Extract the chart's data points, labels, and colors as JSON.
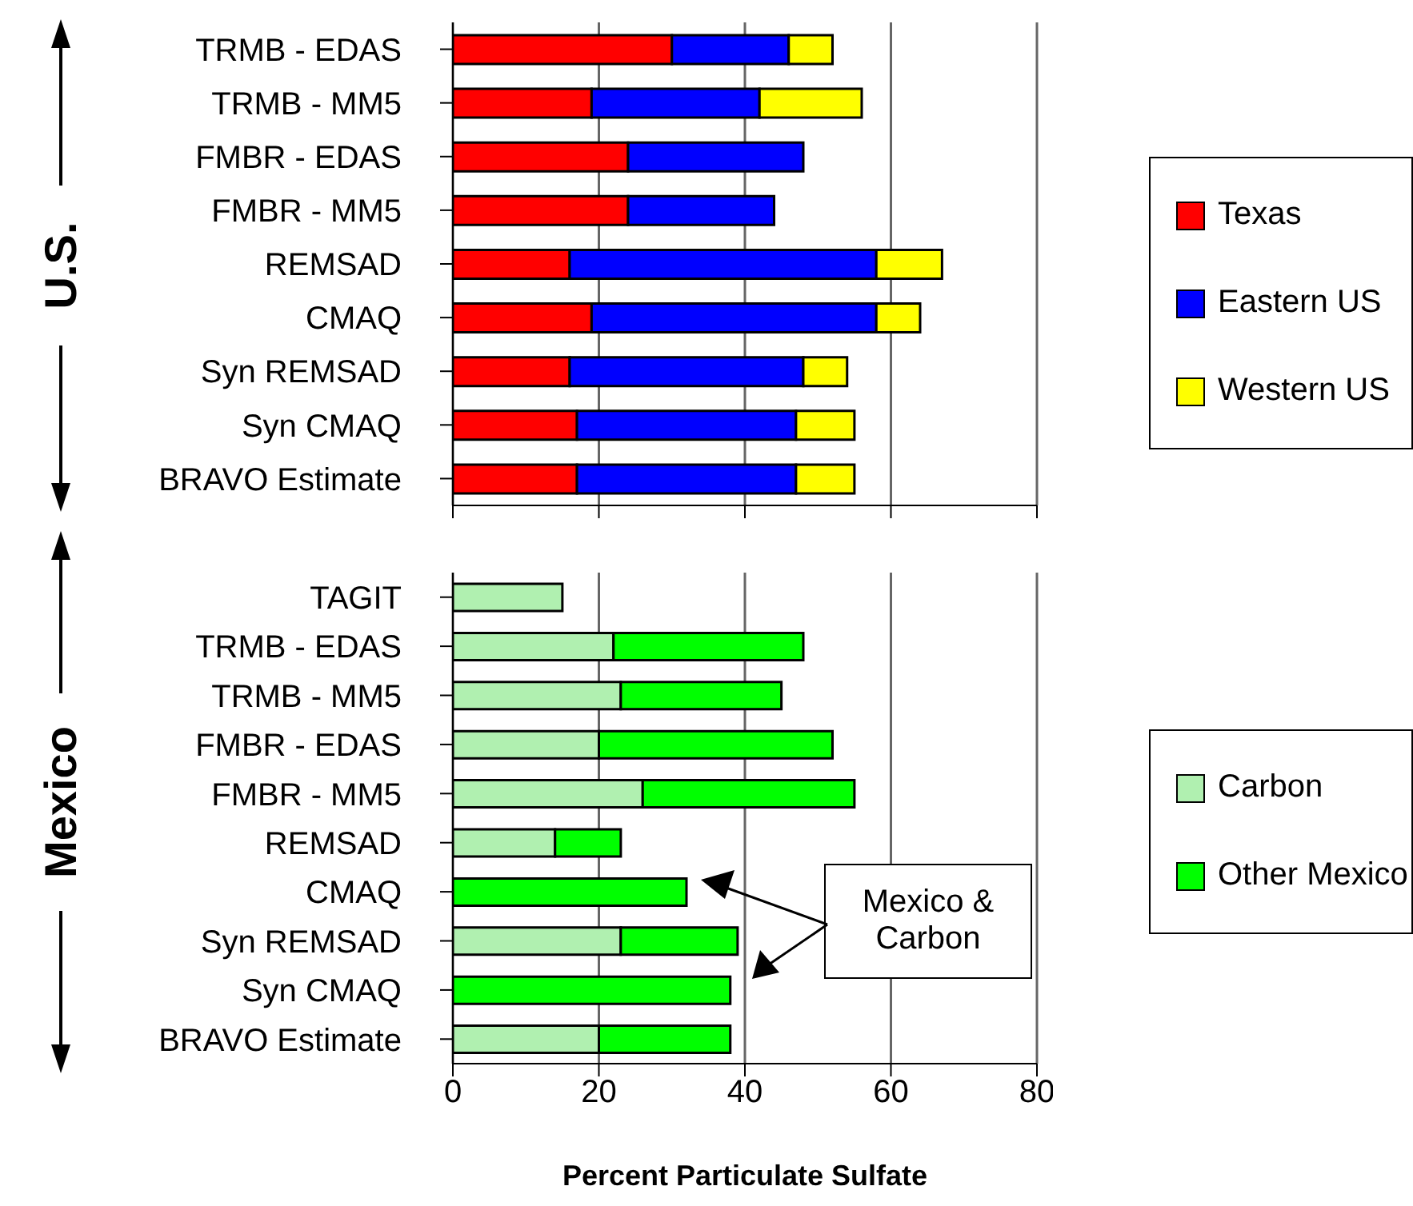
{
  "chart_data": [
    {
      "type": "bar",
      "orientation": "horizontal",
      "stacked": true,
      "ylabel": "U.S.",
      "categories": [
        "TRMB - EDAS",
        "TRMB - MM5",
        "FMBR - EDAS",
        "FMBR - MM5",
        "REMSAD",
        "CMAQ",
        "Syn REMSAD",
        "Syn CMAQ",
        "BRAVO Estimate"
      ],
      "series": [
        {
          "name": "Texas",
          "color": "#ff0000",
          "values": [
            30,
            19,
            24,
            24,
            16,
            19,
            16,
            17,
            17
          ]
        },
        {
          "name": "Eastern US",
          "color": "#0000ff",
          "values": [
            16,
            23,
            24,
            20,
            42,
            39,
            32,
            30,
            30
          ]
        },
        {
          "name": "Western US",
          "color": "#ffff00",
          "values": [
            6,
            14,
            null,
            null,
            9,
            6,
            6,
            8,
            8
          ]
        }
      ],
      "xlim": [
        0,
        80
      ],
      "xticks": [
        0,
        20,
        40,
        60,
        80
      ],
      "grid": "x",
      "legend": "right",
      "tick_labels": "y"
    },
    {
      "type": "bar",
      "orientation": "horizontal",
      "stacked": true,
      "ylabel": "Mexico",
      "xlabel": "Percent Particulate Sulfate",
      "categories": [
        "TAGIT",
        "TRMB - EDAS",
        "TRMB - MM5",
        "FMBR - EDAS",
        "FMBR - MM5",
        "REMSAD",
        "CMAQ",
        "Syn REMSAD",
        "Syn CMAQ",
        "BRAVO Estimate"
      ],
      "series": [
        {
          "name": "Carbon",
          "color": "#b0f0b0",
          "values": [
            15,
            22,
            23,
            20,
            26,
            14,
            0,
            23,
            0,
            20
          ]
        },
        {
          "name": "Other Mexico",
          "color": "#00ff00",
          "values": [
            0,
            26,
            22,
            32,
            29,
            9,
            32,
            16,
            38,
            18
          ]
        }
      ],
      "xlim": [
        0,
        80
      ],
      "xticks": [
        0,
        20,
        40,
        60,
        80
      ],
      "grid": "x",
      "legend": "right",
      "annotations": [
        "Mexico & Carbon"
      ]
    }
  ]
}
